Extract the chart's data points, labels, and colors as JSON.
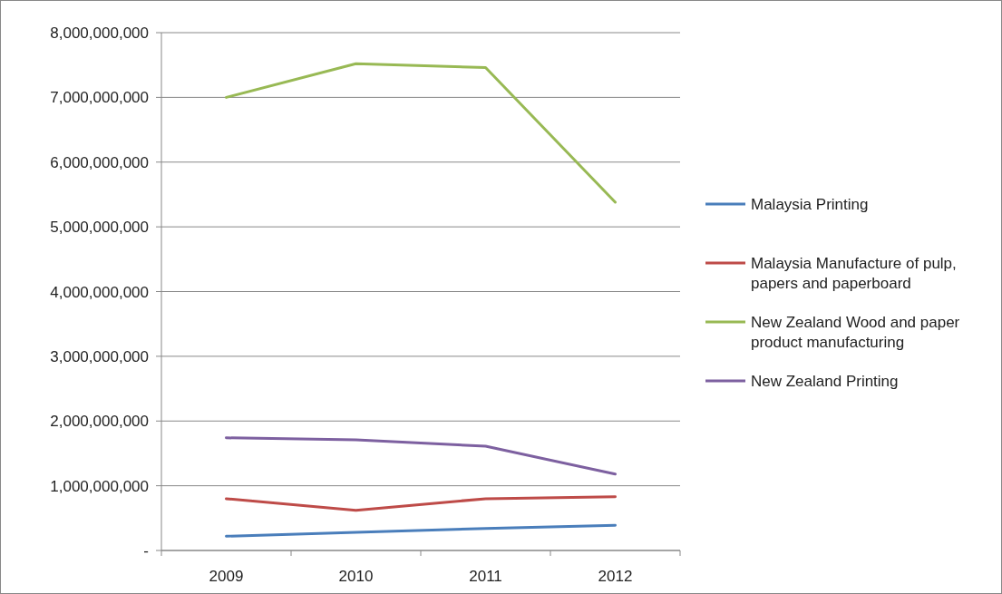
{
  "chart_data": {
    "type": "line",
    "categories": [
      "2009",
      "2010",
      "2011",
      "2012"
    ],
    "series": [
      {
        "name": "Malaysia Printing",
        "color": "#4a7ebb",
        "values": [
          220000000,
          280000000,
          340000000,
          390000000
        ]
      },
      {
        "name": "Malaysia Manufacture of pulp, papers and paperboard",
        "color": "#be4b48",
        "values": [
          800000000,
          620000000,
          800000000,
          830000000
        ]
      },
      {
        "name": "New Zealand Wood and paper product manufacturing",
        "color": "#98b954",
        "values": [
          7000000000,
          7520000000,
          7460000000,
          5380000000
        ]
      },
      {
        "name": "New Zealand Printing",
        "color": "#7d60a0",
        "values": [
          1740000000,
          1710000000,
          1610000000,
          1180000000
        ]
      }
    ],
    "ylim": [
      0,
      8000000000
    ],
    "yticks": [
      {
        "value": 0,
        "label": "-"
      },
      {
        "value": 1000000000,
        "label": "1,000,000,000"
      },
      {
        "value": 2000000000,
        "label": "2,000,000,000"
      },
      {
        "value": 3000000000,
        "label": "3,000,000,000"
      },
      {
        "value": 4000000000,
        "label": "4,000,000,000"
      },
      {
        "value": 5000000000,
        "label": "5,000,000,000"
      },
      {
        "value": 6000000000,
        "label": "6,000,000,000"
      },
      {
        "value": 7000000000,
        "label": "7,000,000,000"
      },
      {
        "value": 8000000000,
        "label": "8,000,000,000"
      }
    ],
    "grid": "y",
    "legend": "right",
    "marker": "none",
    "line_style": "solid"
  }
}
